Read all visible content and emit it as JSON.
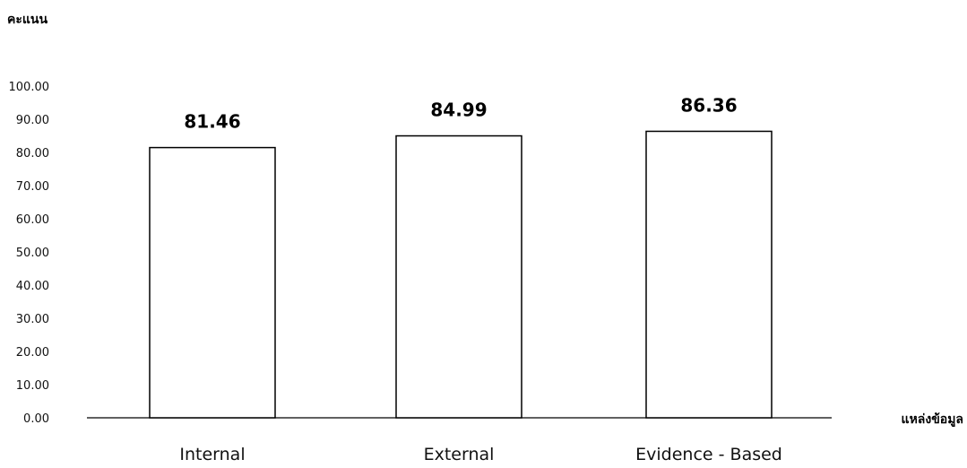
{
  "chart_data": {
    "type": "bar",
    "categories": [
      "Internal",
      "External",
      "Evidence - Based"
    ],
    "values": [
      81.46,
      84.99,
      86.36
    ],
    "value_labels": [
      "81.46",
      "84.99",
      "86.36"
    ],
    "ylabel": "คะแนน",
    "xlabel": "แหล่งข้อมูล",
    "ylim": [
      0,
      100
    ],
    "yticks": [
      "0.00",
      "10.00",
      "20.00",
      "30.00",
      "40.00",
      "50.00",
      "60.00",
      "70.00",
      "80.00",
      "90.00",
      "100.00"
    ],
    "grid": false,
    "legend": "none",
    "bar_fill": "#ffffff",
    "bar_stroke": "#000000"
  }
}
